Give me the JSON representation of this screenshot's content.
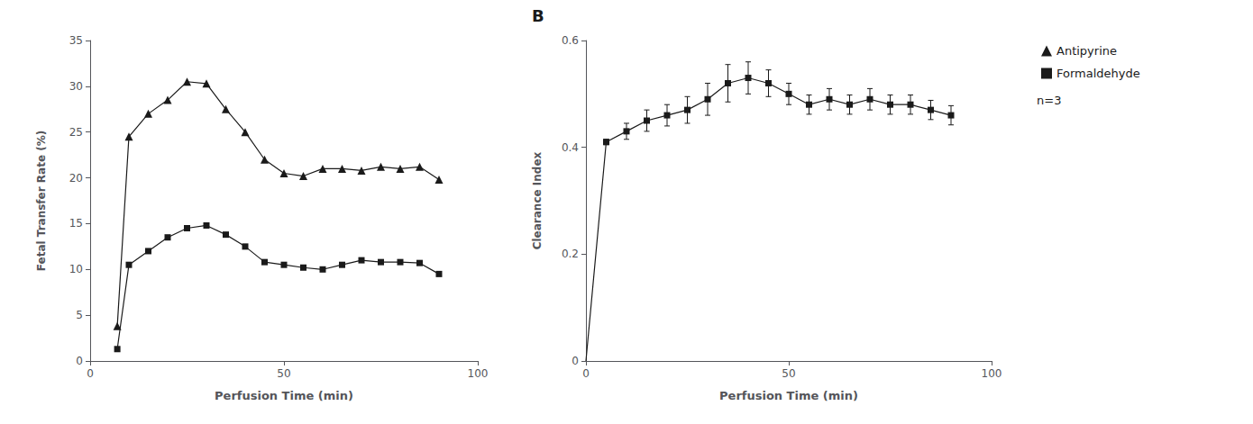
{
  "chart_data": [
    {
      "type": "line",
      "xlabel": "Perfusion Time (min)",
      "ylabel": "Fetal Transfer Rate (%)",
      "x": [
        7,
        10,
        15,
        20,
        25,
        30,
        35,
        40,
        45,
        50,
        55,
        60,
        65,
        70,
        75,
        80,
        85,
        90
      ],
      "series": [
        {
          "name": "Antipyrine",
          "color": "#1a1a1a",
          "marker": "triangle",
          "values": [
            3.8,
            24.5,
            27.0,
            28.5,
            30.5,
            30.3,
            27.5,
            25.0,
            22.0,
            20.5,
            20.2,
            21.0,
            21.0,
            20.8,
            21.2,
            21.0,
            21.2,
            19.8
          ]
        },
        {
          "name": "Formaldehyde",
          "color": "#1a1a1a",
          "marker": "square",
          "values": [
            1.3,
            10.5,
            12.0,
            13.5,
            14.5,
            14.8,
            13.8,
            12.5,
            10.8,
            10.5,
            10.2,
            10.0,
            10.5,
            11.0,
            10.8,
            10.8,
            10.7,
            9.5
          ]
        }
      ],
      "xlim": [
        0,
        100
      ],
      "ylim": [
        0,
        35
      ],
      "xticks": [
        0,
        50,
        100
      ],
      "yticks": [
        0,
        5,
        10,
        15,
        20,
        25,
        30,
        35
      ],
      "grid": false,
      "legend": "right",
      "annotations": [
        "n=3"
      ]
    },
    {
      "type": "line",
      "xlabel": "Perfusion Time (min)",
      "ylabel": "Clearance Index",
      "x": [
        0,
        5,
        10,
        15,
        20,
        25,
        30,
        35,
        40,
        45,
        50,
        55,
        60,
        65,
        70,
        75,
        80,
        85,
        90
      ],
      "series": [
        {
          "color": "#1a1a1a",
          "marker": "square",
          "values": [
            0.0,
            0.41,
            0.43,
            0.45,
            0.46,
            0.47,
            0.49,
            0.52,
            0.53,
            0.52,
            0.5,
            0.48,
            0.49,
            0.48,
            0.49,
            0.48,
            0.48,
            0.47,
            0.46
          ],
          "errors": [
            0.0,
            0.005,
            0.015,
            0.02,
            0.02,
            0.025,
            0.03,
            0.035,
            0.03,
            0.025,
            0.02,
            0.018,
            0.02,
            0.018,
            0.02,
            0.018,
            0.018,
            0.018,
            0.018
          ]
        }
      ],
      "xlim": [
        0,
        100
      ],
      "ylim": [
        0,
        0.6
      ],
      "xticks": [
        0,
        50,
        100
      ],
      "yticks": [
        0,
        0.2,
        0.4,
        0.6
      ],
      "grid": false,
      "annotations": [
        "B"
      ]
    }
  ]
}
